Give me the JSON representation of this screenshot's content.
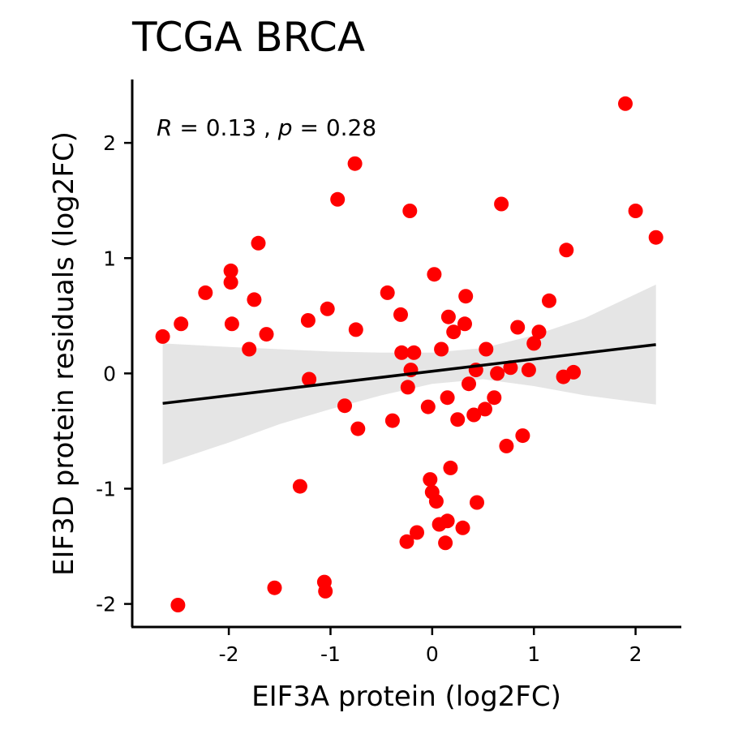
{
  "chart_data": {
    "type": "scatter",
    "title": "TCGA BRCA",
    "xlabel": "EIF3A protein (log2FC)",
    "ylabel": "EIF3D protein residuals (log2FC)",
    "xlim": [
      -2.95,
      2.45
    ],
    "ylim": [
      -2.2,
      2.55
    ],
    "x_ticks": [
      -2,
      -1,
      0,
      1,
      2
    ],
    "x_tick_labels": [
      "-2",
      "-1",
      "0",
      "1",
      "2"
    ],
    "y_ticks": [
      -2,
      -1,
      0,
      1,
      2
    ],
    "y_tick_labels": [
      "-2",
      "-1",
      "0",
      "1",
      "2"
    ],
    "grid": false,
    "stat": {
      "r_label": "R",
      "r_value": "0.13",
      "p_label": "p",
      "p_value": "0.28"
    },
    "regression": {
      "x_start": -2.65,
      "y_start": -0.26,
      "x_end": 2.2,
      "y_end": 0.25
    },
    "confidence_band": {
      "x": [
        -2.65,
        -2.0,
        -1.5,
        -1.0,
        -0.5,
        0.0,
        0.5,
        1.0,
        1.5,
        2.2
      ],
      "upper": [
        0.26,
        0.23,
        0.21,
        0.19,
        0.18,
        0.18,
        0.22,
        0.33,
        0.48,
        0.77
      ],
      "lower": [
        -0.79,
        -0.6,
        -0.44,
        -0.31,
        -0.19,
        -0.09,
        -0.05,
        -0.11,
        -0.19,
        -0.27
      ]
    },
    "point_color": "#ff0000",
    "line_color": "#000000",
    "band_color": "#e5e5e5",
    "points": [
      {
        "x": -2.65,
        "y": 0.32
      },
      {
        "x": -2.5,
        "y": -2.01
      },
      {
        "x": -2.47,
        "y": 0.43
      },
      {
        "x": -2.23,
        "y": 0.7
      },
      {
        "x": -1.98,
        "y": 0.89
      },
      {
        "x": -1.98,
        "y": 0.79
      },
      {
        "x": -1.97,
        "y": 0.43
      },
      {
        "x": -1.8,
        "y": 0.21
      },
      {
        "x": -1.75,
        "y": 0.64
      },
      {
        "x": -1.71,
        "y": 1.13
      },
      {
        "x": -1.63,
        "y": 0.34
      },
      {
        "x": -1.55,
        "y": -1.86
      },
      {
        "x": -1.3,
        "y": -0.98
      },
      {
        "x": -1.22,
        "y": 0.46
      },
      {
        "x": -1.21,
        "y": -0.05
      },
      {
        "x": -1.06,
        "y": -1.81
      },
      {
        "x": -1.05,
        "y": -1.89
      },
      {
        "x": -1.03,
        "y": 0.56
      },
      {
        "x": -0.93,
        "y": 1.51
      },
      {
        "x": -0.86,
        "y": -0.28
      },
      {
        "x": -0.76,
        "y": 1.82
      },
      {
        "x": -0.75,
        "y": 0.38
      },
      {
        "x": -0.73,
        "y": -0.48
      },
      {
        "x": -0.44,
        "y": 0.7
      },
      {
        "x": -0.39,
        "y": -0.41
      },
      {
        "x": -0.31,
        "y": 0.51
      },
      {
        "x": -0.3,
        "y": 0.18
      },
      {
        "x": -0.25,
        "y": -1.46
      },
      {
        "x": -0.24,
        "y": -0.12
      },
      {
        "x": -0.22,
        "y": 1.41
      },
      {
        "x": -0.21,
        "y": 0.03
      },
      {
        "x": -0.18,
        "y": 0.18
      },
      {
        "x": -0.15,
        "y": -1.38
      },
      {
        "x": -0.04,
        "y": -0.29
      },
      {
        "x": -0.02,
        "y": -0.92
      },
      {
        "x": 0.0,
        "y": -1.03
      },
      {
        "x": 0.02,
        "y": 0.86
      },
      {
        "x": 0.04,
        "y": -1.11
      },
      {
        "x": 0.07,
        "y": -1.31
      },
      {
        "x": 0.09,
        "y": 0.21
      },
      {
        "x": 0.13,
        "y": -1.47
      },
      {
        "x": 0.15,
        "y": -1.28
      },
      {
        "x": 0.15,
        "y": -0.21
      },
      {
        "x": 0.16,
        "y": 0.49
      },
      {
        "x": 0.18,
        "y": -0.82
      },
      {
        "x": 0.21,
        "y": 0.36
      },
      {
        "x": 0.25,
        "y": -0.4
      },
      {
        "x": 0.3,
        "y": -1.34
      },
      {
        "x": 0.32,
        "y": 0.43
      },
      {
        "x": 0.33,
        "y": 0.67
      },
      {
        "x": 0.36,
        "y": -0.09
      },
      {
        "x": 0.41,
        "y": -0.36
      },
      {
        "x": 0.43,
        "y": 0.03
      },
      {
        "x": 0.44,
        "y": -1.12
      },
      {
        "x": 0.52,
        "y": -0.31
      },
      {
        "x": 0.53,
        "y": 0.21
      },
      {
        "x": 0.61,
        "y": -0.21
      },
      {
        "x": 0.64,
        "y": 0.0
      },
      {
        "x": 0.68,
        "y": 1.47
      },
      {
        "x": 0.73,
        "y": -0.63
      },
      {
        "x": 0.77,
        "y": 0.05
      },
      {
        "x": 0.84,
        "y": 0.4
      },
      {
        "x": 0.89,
        "y": -0.54
      },
      {
        "x": 0.95,
        "y": 0.03
      },
      {
        "x": 1.0,
        "y": 0.26
      },
      {
        "x": 1.05,
        "y": 0.36
      },
      {
        "x": 1.15,
        "y": 0.63
      },
      {
        "x": 1.29,
        "y": -0.03
      },
      {
        "x": 1.32,
        "y": 1.07
      },
      {
        "x": 1.39,
        "y": 0.01
      },
      {
        "x": 1.9,
        "y": 2.34
      },
      {
        "x": 2.0,
        "y": 1.41
      },
      {
        "x": 2.2,
        "y": 1.18
      }
    ]
  }
}
